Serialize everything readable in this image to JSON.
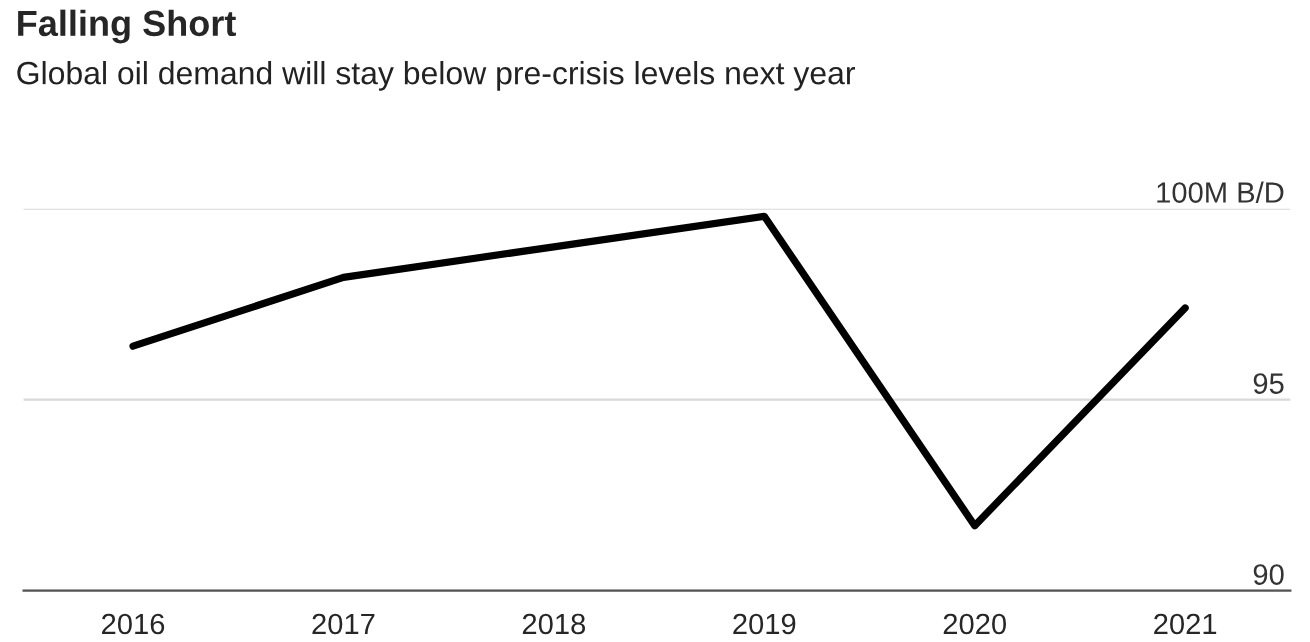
{
  "chart_data": {
    "type": "line",
    "title": "Falling Short",
    "subtitle": "Global oil demand will stay below pre-crisis levels next year",
    "categories": [
      "2016",
      "2017",
      "2018",
      "2019",
      "2020",
      "2021"
    ],
    "series": [
      {
        "color": "#000000",
        "values": [
          96.4,
          98.2,
          99.0,
          99.8,
          91.7,
          97.4
        ]
      }
    ],
    "ylim": [
      90,
      100
    ],
    "yticks": [
      {
        "value": 90,
        "label": "90"
      },
      {
        "value": 95,
        "label": "95"
      },
      {
        "value": 100,
        "label": "100M B/D"
      }
    ],
    "grid": "y",
    "marker": "none",
    "line_style": "solid"
  }
}
